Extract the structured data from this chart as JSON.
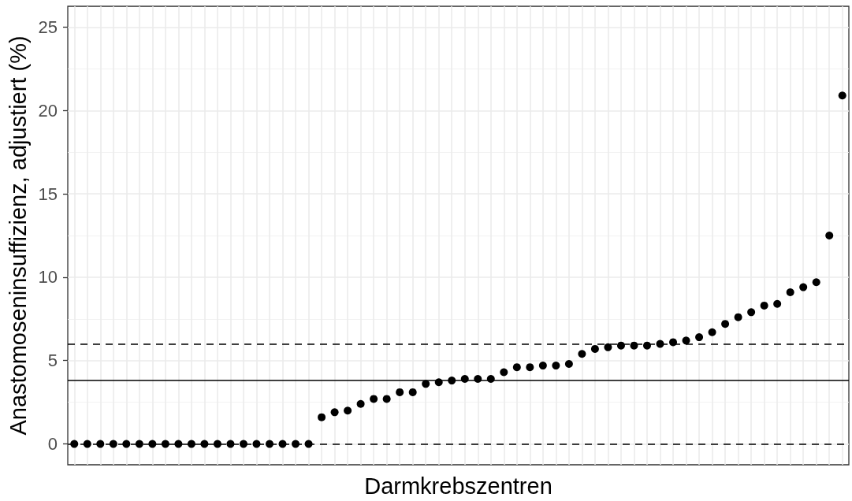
{
  "chart_data": {
    "type": "scatter",
    "xlabel": "Darmkrebszentren",
    "ylabel": "Anastomoseninsuffizienz, adjustiert (%)",
    "categories": [
      null,
      null,
      null,
      null,
      null,
      null,
      null,
      null,
      null,
      null,
      null,
      null,
      null,
      null,
      null,
      null,
      null,
      null,
      null,
      null,
      null,
      null,
      null,
      null,
      null,
      null,
      null,
      null,
      null,
      null,
      null,
      null,
      null,
      null,
      null,
      null,
      null,
      null,
      null,
      null,
      null,
      null,
      null,
      null,
      null,
      null,
      null,
      null,
      null,
      null,
      null,
      null,
      null,
      null,
      null,
      null,
      null,
      null,
      null,
      null
    ],
    "values": [
      0,
      0,
      0,
      0,
      0,
      0,
      0,
      0,
      0,
      0,
      0,
      0,
      0,
      0,
      0,
      0,
      0,
      0,
      0,
      1.6,
      1.9,
      2.0,
      2.4,
      2.7,
      2.7,
      3.1,
      3.1,
      3.6,
      3.7,
      3.8,
      3.9,
      3.9,
      3.9,
      4.3,
      4.6,
      4.6,
      4.7,
      4.7,
      4.8,
      5.4,
      5.7,
      5.8,
      5.9,
      5.9,
      5.9,
      6.0,
      6.1,
      6.2,
      6.4,
      6.7,
      7.2,
      7.6,
      7.9,
      8.3,
      8.4,
      9.1,
      9.4,
      9.7,
      12.5,
      20.9
    ],
    "color": "#000000",
    "marker": "circle",
    "ylim": [
      -1.25,
      26.25
    ],
    "yticks": [
      0,
      5,
      10,
      15,
      20,
      25
    ],
    "ref_lines": [
      {
        "axis": "y",
        "value": 0,
        "line_style": "dashed",
        "color": "#000000"
      },
      {
        "axis": "y",
        "value": 3.8,
        "line_style": "solid",
        "color": "#000000"
      },
      {
        "axis": "y",
        "value": 6.0,
        "line_style": "dashed",
        "color": "#000000"
      }
    ],
    "grid": true,
    "tick_labels": "y"
  }
}
